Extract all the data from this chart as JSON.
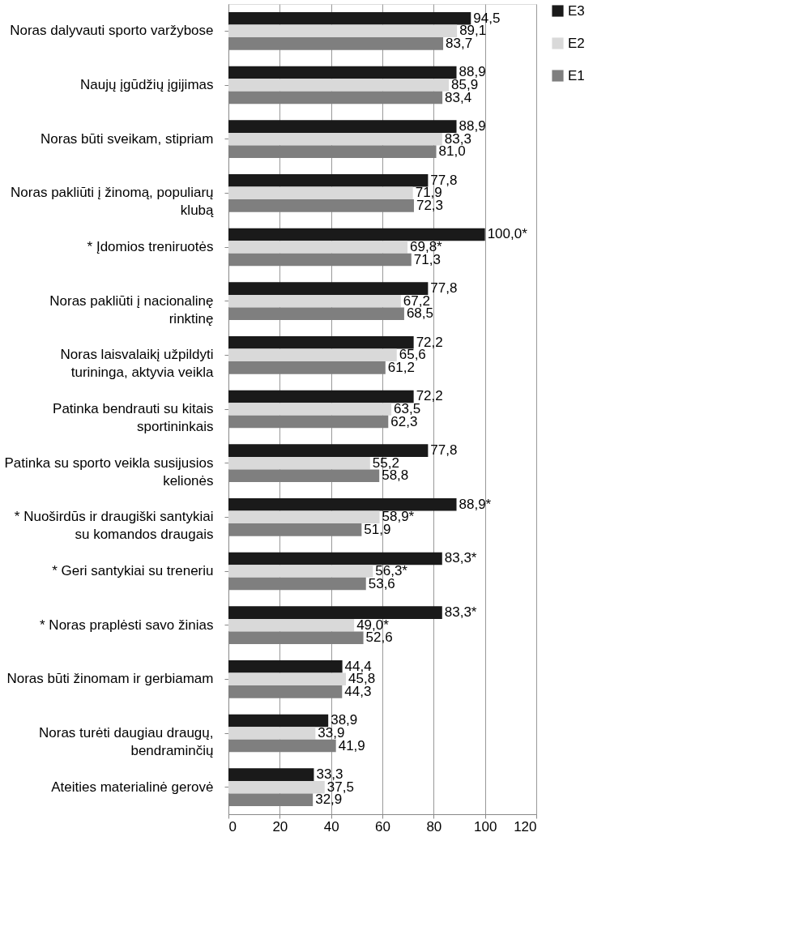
{
  "chart_data": {
    "type": "bar",
    "orientation": "horizontal",
    "categories": [
      "Noras dalyvauti sporto varžybose",
      "Naujų įgūdžių įgijimas",
      "Noras būti sveikam, stipriam",
      "Noras pakliūti į žinomą, populiarų klubą",
      "* Įdomios treniruotės",
      "Noras pakliūti į nacionalinę rinktinę",
      "Noras laisvalaikį užpildyti turininga, aktyvia veikla",
      "Patinka bendrauti su kitais sportininkais",
      "Patinka su sporto veikla susijusios kelionės",
      "* Nuoširdūs ir draugiški santykiai su komandos draugais",
      "* Geri santykiai su treneriu",
      "* Noras praplėsti savo žinias",
      "Noras būti žinomam ir gerbiamam",
      "Noras turėti daugiau draugų, bendraminčių",
      "Ateities materialinė gerovė"
    ],
    "series": [
      {
        "name": "E3",
        "color": "#1a1a1a",
        "values": [
          94.5,
          88.9,
          88.9,
          77.8,
          100.0,
          77.8,
          72.2,
          72.2,
          77.8,
          88.9,
          83.3,
          83.3,
          44.4,
          38.9,
          33.3
        ],
        "value_labels": [
          "94,5",
          "88,9",
          "88,9",
          "77,8",
          "100,0*",
          "77,8",
          "72,2",
          "72,2",
          "77,8",
          "88,9*",
          "83,3*",
          "83,3*",
          "44,4",
          "38,9",
          "33,3"
        ]
      },
      {
        "name": "E2",
        "color": "#d9d9d9",
        "values": [
          89.1,
          85.9,
          83.3,
          71.9,
          69.8,
          67.2,
          65.6,
          63.5,
          55.2,
          58.9,
          56.3,
          49.0,
          45.8,
          33.9,
          37.5
        ],
        "value_labels": [
          "89,1",
          "85,9",
          "83,3",
          "71,9",
          "69,8*",
          "67,2",
          "65,6",
          "63,5",
          "55,2",
          "58,9*",
          "56,3*",
          "49,0*",
          "45,8",
          "33,9",
          "37,5"
        ]
      },
      {
        "name": "E1",
        "color": "#7f7f7f",
        "values": [
          83.7,
          83.4,
          81.0,
          72.3,
          71.3,
          68.5,
          61.2,
          62.3,
          58.8,
          51.9,
          53.6,
          52.6,
          44.3,
          41.9,
          32.9
        ],
        "value_labels": [
          "83,7",
          "83,4",
          "81,0",
          "72,3",
          "71,3",
          "68,5",
          "61,2",
          "62,3",
          "58,8",
          "51,9",
          "53,6",
          "52,6",
          "44,3",
          "41,9",
          "32,9"
        ]
      }
    ],
    "xlim": [
      0,
      120
    ],
    "xticks": [
      0,
      20,
      40,
      60,
      80,
      100,
      120
    ],
    "grid": "x",
    "legend": "right"
  }
}
